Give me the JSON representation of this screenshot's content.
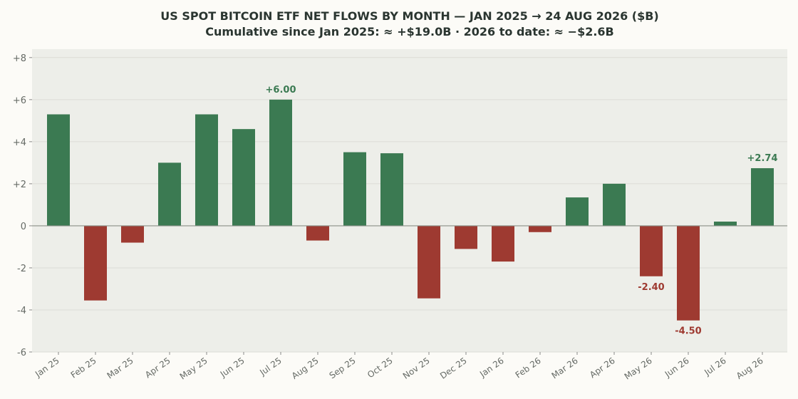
{
  "chart_data": {
    "type": "bar",
    "title": "US SPOT BITCOIN ETF NET FLOWS BY MONTH — JAN 2025 → 24 AUG 2026 ($B)",
    "subtitle": "Cumulative since Jan 2025: ≈ +$19.0B  ·  2026 to date: ≈ −$2.6B",
    "categories": [
      "Jan 25",
      "Feb 25",
      "Mar 25",
      "Apr 25",
      "May 25",
      "Jun 25",
      "Jul 25",
      "Aug 25",
      "Sep 25",
      "Oct 25",
      "Nov 25",
      "Dec 25",
      "Jan 26",
      "Feb 26",
      "Mar 26",
      "Apr 26",
      "May 26",
      "Jun 26",
      "Jul 26",
      "Aug 26"
    ],
    "values": [
      5.3,
      -3.55,
      -0.8,
      3.0,
      5.3,
      4.6,
      6.0,
      -0.7,
      3.5,
      3.45,
      -3.45,
      -1.1,
      -1.7,
      -0.3,
      1.35,
      2.0,
      -2.4,
      -4.5,
      0.2,
      2.74
    ],
    "data_labels": [
      {
        "index": 6,
        "text": "+6.00"
      },
      {
        "index": 16,
        "text": "-2.40"
      },
      {
        "index": 17,
        "text": "-4.50"
      },
      {
        "index": 19,
        "text": "+2.74"
      }
    ],
    "ylim": [
      -6,
      8.4
    ],
    "yticks": [
      -6,
      -4,
      -2,
      0,
      2,
      4,
      6,
      8
    ],
    "ytick_labels": [
      "-6",
      "-4",
      "-2",
      "0",
      "+2",
      "+4",
      "+6",
      "+8"
    ],
    "grid": true,
    "colors": {
      "positive": "#3b7a52",
      "negative": "#9e3a31",
      "plot_bg": "#edeee9",
      "grid": "#dcdcd6",
      "zero_line": "#8a9088",
      "tick_text": "#666b66"
    }
  }
}
